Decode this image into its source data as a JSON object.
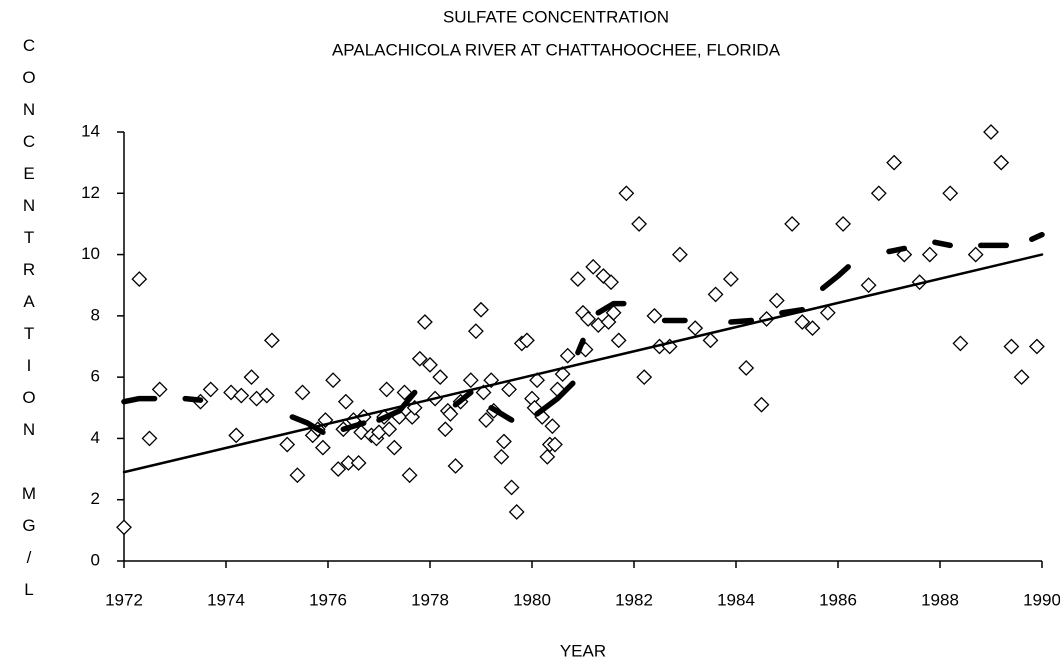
{
  "chart_data": {
    "type": "scatter",
    "title": "SULFATE CONCENTRATION",
    "subtitle": "APALACHICOLA RIVER AT CHATTAHOOCHEE, FLORIDA",
    "x_label": "YEAR",
    "y_label": "CONCENTRATION MG/L",
    "xlim": [
      1972,
      1990
    ],
    "xticks": [
      1972,
      1974,
      1976,
      1978,
      1980,
      1982,
      1984,
      1986,
      1988,
      1990
    ],
    "ylim": [
      0,
      14
    ],
    "yticks": [
      0,
      2,
      4,
      6,
      8,
      10,
      12,
      14
    ],
    "series": [
      {
        "mode": "markers",
        "color": "#000000",
        "x": [
          1972.0,
          1972.3,
          1972.5,
          1972.7,
          1973.5,
          1973.7,
          1974.1,
          1974.2,
          1974.3,
          1974.5,
          1974.6,
          1974.8,
          1974.9,
          1975.2,
          1975.4,
          1975.5,
          1975.7,
          1975.8,
          1975.9,
          1975.95,
          1976.1,
          1976.2,
          1976.3,
          1976.35,
          1976.4,
          1976.5,
          1976.6,
          1976.65,
          1976.7,
          1976.85,
          1976.95,
          1977.0,
          1977.1,
          1977.15,
          1977.2,
          1977.3,
          1977.4,
          1977.5,
          1977.6,
          1977.65,
          1977.7,
          1977.8,
          1977.9,
          1978.0,
          1978.1,
          1978.2,
          1978.3,
          1978.35,
          1978.4,
          1978.5,
          1978.6,
          1978.8,
          1978.9,
          1979.0,
          1979.05,
          1979.1,
          1979.2,
          1979.25,
          1979.4,
          1979.45,
          1979.55,
          1979.6,
          1979.7,
          1979.8,
          1979.9,
          1980.0,
          1980.05,
          1980.1,
          1980.2,
          1980.3,
          1980.35,
          1980.4,
          1980.45,
          1980.5,
          1980.6,
          1980.7,
          1980.9,
          1981.0,
          1981.05,
          1981.1,
          1981.2,
          1981.3,
          1981.4,
          1981.5,
          1981.55,
          1981.6,
          1981.7,
          1981.85,
          1982.1,
          1982.2,
          1982.4,
          1982.5,
          1982.7,
          1982.9,
          1983.2,
          1983.5,
          1983.6,
          1983.9,
          1984.2,
          1984.5,
          1984.6,
          1984.8,
          1985.1,
          1985.3,
          1985.5,
          1985.8,
          1986.1,
          1986.6,
          1986.8,
          1987.1,
          1987.3,
          1987.6,
          1987.8,
          1988.2,
          1988.4,
          1988.7,
          1989.0,
          1989.2,
          1989.4,
          1989.6,
          1989.9
        ],
        "values": [
          1.1,
          9.2,
          4.0,
          5.6,
          5.2,
          5.6,
          5.5,
          4.1,
          5.4,
          6.0,
          5.3,
          5.4,
          7.2,
          3.8,
          2.8,
          5.5,
          4.1,
          4.3,
          3.7,
          4.6,
          5.9,
          3.0,
          4.3,
          5.2,
          3.2,
          4.6,
          3.2,
          4.2,
          4.7,
          4.1,
          4.0,
          4.2,
          4.7,
          5.6,
          4.3,
          3.7,
          4.7,
          5.5,
          2.8,
          4.7,
          5.0,
          6.6,
          7.8,
          6.4,
          5.3,
          6.0,
          4.3,
          4.9,
          4.8,
          3.1,
          5.2,
          5.9,
          7.5,
          8.2,
          5.5,
          4.6,
          5.9,
          4.9,
          3.4,
          3.9,
          5.6,
          2.4,
          1.6,
          7.1,
          7.2,
          5.3,
          5.0,
          5.9,
          4.7,
          3.4,
          3.8,
          4.4,
          3.8,
          5.6,
          6.1,
          6.7,
          9.2,
          8.1,
          6.9,
          7.9,
          9.6,
          7.7,
          9.3,
          7.8,
          9.1,
          8.1,
          7.2,
          12.0,
          11.0,
          6.0,
          8.0,
          7.0,
          7.0,
          10.0,
          7.6,
          7.2,
          8.7,
          9.2,
          6.3,
          5.1,
          7.9,
          8.5,
          11.0,
          7.8,
          7.6,
          8.1,
          11.0,
          9.0,
          12.0,
          13.0,
          10.0,
          9.1,
          10.0,
          12.0,
          7.1,
          10.0,
          14.0,
          13.0,
          7.0,
          6.0,
          7.0
        ]
      },
      {
        "mode": "line",
        "color": "#000000",
        "x": [
          1972,
          1990
        ],
        "values": [
          2.9,
          10.0
        ]
      },
      {
        "mode": "dashed",
        "color": "#000000",
        "x": [
          1972.0,
          1972.3,
          1972.6,
          1972.9,
          1973.2,
          1973.5,
          1974.0,
          1975.3,
          1975.6,
          1975.9,
          1976.1,
          1976.3,
          1976.7,
          1976.85,
          1977.0,
          1977.4,
          1977.7,
          1978.1,
          1978.5,
          1978.8,
          1979.0,
          1979.2,
          1979.6,
          1979.9,
          1980.1,
          1980.5,
          1980.8,
          1980.85,
          1980.9,
          1981.0,
          1981.15,
          1981.3,
          1981.6,
          1981.8,
          1982.2,
          1982.6,
          1983.0,
          1983.5,
          1983.9,
          1984.3,
          1984.6,
          1984.9,
          1985.3,
          1985.5,
          1985.7,
          1986.0,
          1986.2,
          1986.6,
          1987.0,
          1987.3,
          1987.6,
          1987.9,
          1988.2,
          1988.5,
          1988.8,
          1989.3,
          1989.6,
          1989.8,
          1990.0
        ],
        "values": [
          5.2,
          5.3,
          5.3,
          null,
          5.3,
          5.25,
          null,
          4.7,
          4.5,
          4.2,
          null,
          4.3,
          4.5,
          null,
          4.6,
          4.9,
          5.5,
          null,
          5.1,
          5.5,
          null,
          5.0,
          4.6,
          null,
          4.8,
          5.3,
          5.8,
          null,
          6.8,
          7.2,
          null,
          8.1,
          8.4,
          8.4,
          null,
          7.85,
          7.85,
          null,
          7.8,
          7.85,
          null,
          8.1,
          8.2,
          null,
          8.9,
          9.3,
          9.6,
          null,
          10.1,
          10.2,
          null,
          10.4,
          10.3,
          null,
          10.3,
          10.3,
          null,
          10.5,
          10.65
        ]
      }
    ]
  }
}
